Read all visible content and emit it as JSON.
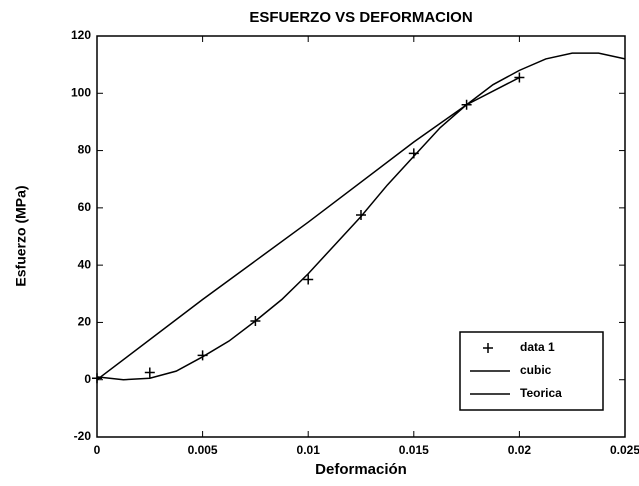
{
  "chart_data": {
    "type": "line",
    "title": "ESFUERZO VS DEFORMACION",
    "x_label": "Deformación",
    "y_label": "Esfuerzo (MPa)",
    "xlim": [
      0,
      0.025
    ],
    "xticks": [
      0,
      0.005,
      0.01,
      0.015,
      0.02,
      0.025
    ],
    "ylim": [
      -20,
      120
    ],
    "yticks": [
      -20,
      0,
      20,
      40,
      60,
      80,
      100,
      120
    ],
    "legend": "lower right",
    "series": [
      {
        "name": "data 1",
        "color": "#000000",
        "mode": "markers",
        "x": [
          0,
          0.0025,
          0.005,
          0.0075,
          0.01,
          0.0125,
          0.015,
          0.0175,
          0.02
        ],
        "values": [
          0.5,
          2.5,
          8.5,
          20.5,
          35,
          57.5,
          79,
          96,
          105.5
        ]
      },
      {
        "name": "cubic",
        "color": "#000000",
        "mode": "lines",
        "x": [
          0,
          0.00125,
          0.0025,
          0.00375,
          0.005,
          0.00625,
          0.0075,
          0.00875,
          0.01,
          0.01125,
          0.0125,
          0.01375,
          0.015,
          0.01625,
          0.0175,
          0.01875,
          0.02,
          0.02125,
          0.0225,
          0.02375,
          0.025
        ],
        "values": [
          1,
          0,
          0.5,
          3,
          8,
          13.5,
          20.5,
          28,
          37,
          47,
          57,
          68,
          78,
          88,
          96,
          103,
          108,
          112,
          114,
          114,
          112
        ]
      },
      {
        "name": "Teorica",
        "color": "#000000",
        "mode": "lines",
        "x": [
          0,
          0.005,
          0.01,
          0.015,
          0.0175,
          0.02
        ],
        "values": [
          0,
          28,
          55,
          83,
          96,
          105.5
        ]
      }
    ]
  }
}
